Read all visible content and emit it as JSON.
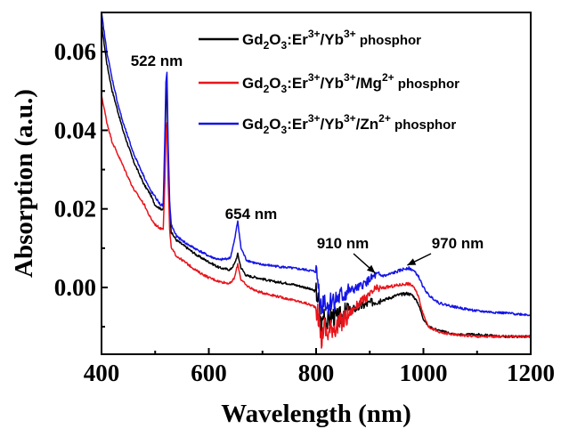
{
  "chart_data": {
    "type": "line",
    "xlabel": "Wavelength (nm)",
    "ylabel": "Absorption (a.u.)",
    "xlim": [
      400,
      1200
    ],
    "ylim": [
      -0.017,
      0.07
    ],
    "xticks": [
      "400",
      "600",
      "800",
      "1000",
      "1200"
    ],
    "yticks": [
      "0.00",
      "0.02",
      "0.04",
      "0.06"
    ],
    "grid": false,
    "legend_position": "top-right",
    "series": [
      {
        "legend": {
          "base": "Gd",
          "s1": "2",
          "mid": "O",
          "s2": "3",
          "er": ":Er",
          "sup1": "3+",
          "yb": "/Yb",
          "sup2": "3+",
          "dop": "",
          "sup3": "",
          "tail": " phosphor"
        },
        "color": "#000000",
        "x": [
          400,
          410,
          420,
          430,
          440,
          450,
          460,
          470,
          480,
          490,
          500,
          510,
          515,
          518,
          520,
          522,
          524,
          527,
          530,
          540,
          560,
          580,
          600,
          620,
          640,
          648,
          654,
          660,
          670,
          690,
          720,
          750,
          780,
          800,
          805,
          810,
          815,
          820,
          830,
          840,
          860,
          880,
          900,
          910,
          930,
          950,
          970,
          980,
          990,
          1000,
          1010,
          1030,
          1060,
          1100,
          1150,
          1200
        ],
        "y": [
          0.067,
          0.057,
          0.05,
          0.045,
          0.04,
          0.036,
          0.032,
          0.029,
          0.026,
          0.024,
          0.021,
          0.02,
          0.02,
          0.033,
          0.047,
          0.051,
          0.035,
          0.02,
          0.014,
          0.012,
          0.01,
          0.008,
          0.0065,
          0.005,
          0.0045,
          0.006,
          0.0085,
          0.005,
          0.003,
          0.0025,
          0.0015,
          0.001,
          0.0,
          -0.001,
          -0.004,
          -0.01,
          -0.006,
          -0.009,
          -0.007,
          -0.008,
          -0.006,
          -0.005,
          -0.004,
          -0.0035,
          -0.003,
          -0.002,
          -0.0015,
          -0.002,
          -0.004,
          -0.008,
          -0.01,
          -0.011,
          -0.012,
          -0.012,
          -0.0125,
          -0.0125
        ]
      },
      {
        "legend": {
          "base": "Gd",
          "s1": "2",
          "mid": "O",
          "s2": "3",
          "er": ":Er",
          "sup1": "3+",
          "yb": "/Yb",
          "sup2": "3+",
          "dop": "/Mg",
          "sup3": "2+",
          "tail": " phosphor"
        },
        "color": "#e8141b",
        "x": [
          400,
          410,
          420,
          430,
          440,
          450,
          460,
          470,
          480,
          490,
          500,
          510,
          515,
          518,
          520,
          522,
          524,
          527,
          530,
          540,
          560,
          580,
          600,
          620,
          640,
          648,
          654,
          660,
          670,
          690,
          720,
          750,
          780,
          800,
          805,
          810,
          815,
          820,
          830,
          840,
          860,
          880,
          900,
          910,
          930,
          950,
          970,
          980,
          990,
          1000,
          1010,
          1030,
          1060,
          1100,
          1150,
          1200
        ],
        "y": [
          0.049,
          0.042,
          0.037,
          0.034,
          0.031,
          0.028,
          0.025,
          0.023,
          0.021,
          0.018,
          0.016,
          0.015,
          0.015,
          0.027,
          0.038,
          0.042,
          0.028,
          0.015,
          0.01,
          0.008,
          0.006,
          0.004,
          0.0025,
          0.0015,
          0.001,
          0.0025,
          0.006,
          0.002,
          0.0005,
          -0.001,
          -0.002,
          -0.003,
          -0.004,
          -0.005,
          -0.008,
          -0.014,
          -0.009,
          -0.012,
          -0.01,
          -0.01,
          -0.007,
          -0.004,
          -0.002,
          -0.0005,
          0.0,
          0.0005,
          0.001,
          0.0005,
          -0.002,
          -0.007,
          -0.01,
          -0.0115,
          -0.012,
          -0.0125,
          -0.0125,
          -0.0125
        ]
      },
      {
        "legend": {
          "base": "Gd",
          "s1": "2",
          "mid": "O",
          "s2": "3",
          "er": ":Er",
          "sup1": "3+",
          "yb": "/Yb",
          "sup2": "3+",
          "dop": "/Zn",
          "sup3": "2+",
          "tail": " phosphor"
        },
        "color": "#1414e6",
        "x": [
          400,
          410,
          420,
          430,
          440,
          450,
          460,
          470,
          480,
          490,
          500,
          510,
          515,
          518,
          520,
          522,
          524,
          527,
          530,
          540,
          560,
          580,
          600,
          620,
          640,
          648,
          654,
          660,
          670,
          690,
          720,
          750,
          780,
          800,
          805,
          810,
          815,
          820,
          830,
          840,
          860,
          880,
          900,
          910,
          930,
          950,
          970,
          980,
          990,
          1000,
          1010,
          1030,
          1060,
          1100,
          1150,
          1200
        ],
        "y": [
          0.07,
          0.06,
          0.053,
          0.047,
          0.042,
          0.038,
          0.034,
          0.031,
          0.028,
          0.025,
          0.023,
          0.021,
          0.021,
          0.038,
          0.052,
          0.055,
          0.038,
          0.022,
          0.016,
          0.013,
          0.011,
          0.0095,
          0.008,
          0.007,
          0.0075,
          0.012,
          0.017,
          0.01,
          0.007,
          0.006,
          0.0055,
          0.005,
          0.0045,
          0.004,
          0.0,
          -0.006,
          -0.002,
          -0.005,
          -0.003,
          -0.003,
          -0.001,
          0.0,
          0.002,
          0.003,
          0.003,
          0.004,
          0.005,
          0.0045,
          0.003,
          0.0,
          -0.002,
          -0.004,
          -0.005,
          -0.006,
          -0.0065,
          -0.007
        ]
      }
    ],
    "annotations": [
      {
        "label": "522 nm",
        "x": 522,
        "y": 0.055,
        "arrow": false
      },
      {
        "label": "654 nm",
        "x": 654,
        "y": 0.017,
        "arrow": false
      },
      {
        "label": "910 nm",
        "x": 910,
        "y": 0.003,
        "arrow": true
      },
      {
        "label": "970 nm",
        "x": 970,
        "y": 0.005,
        "arrow": true
      }
    ]
  }
}
